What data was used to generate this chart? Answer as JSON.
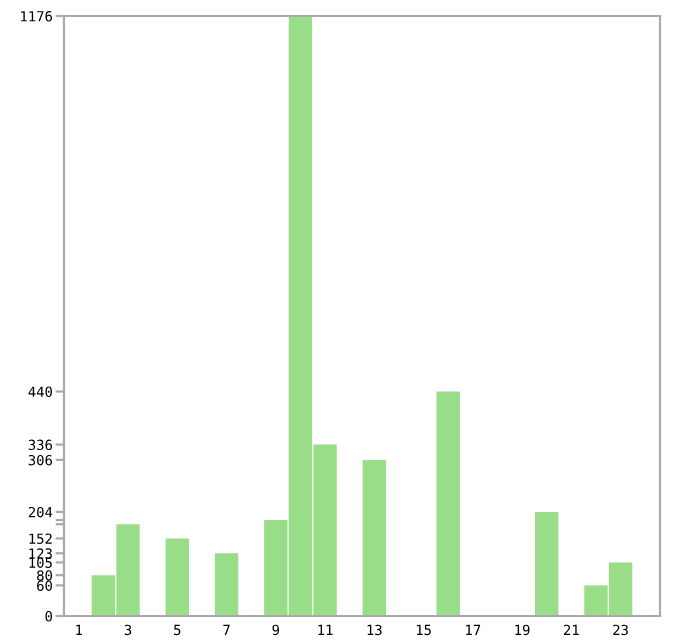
{
  "chart_data": {
    "type": "bar",
    "categories": [
      "1",
      null,
      "3",
      null,
      "5",
      null,
      "7",
      null,
      "9",
      null,
      "11",
      null,
      "13",
      null,
      "15",
      null,
      "17",
      null,
      "19",
      null,
      "21",
      null,
      "23",
      null
    ],
    "values": [
      0,
      80,
      180,
      0,
      152,
      0,
      123,
      0,
      188,
      1176,
      336,
      0,
      306,
      0,
      0,
      440,
      0,
      0,
      0,
      204,
      0,
      60,
      105,
      0
    ],
    "color": "#99dd88",
    "ylim": [
      0,
      1176
    ],
    "yticks": [
      0,
      60,
      80,
      105,
      123,
      152,
      {
        "value": 180,
        "label": null
      },
      {
        "value": 188,
        "label": null
      },
      204,
      306,
      336,
      440,
      1176
    ],
    "grid": false
  }
}
